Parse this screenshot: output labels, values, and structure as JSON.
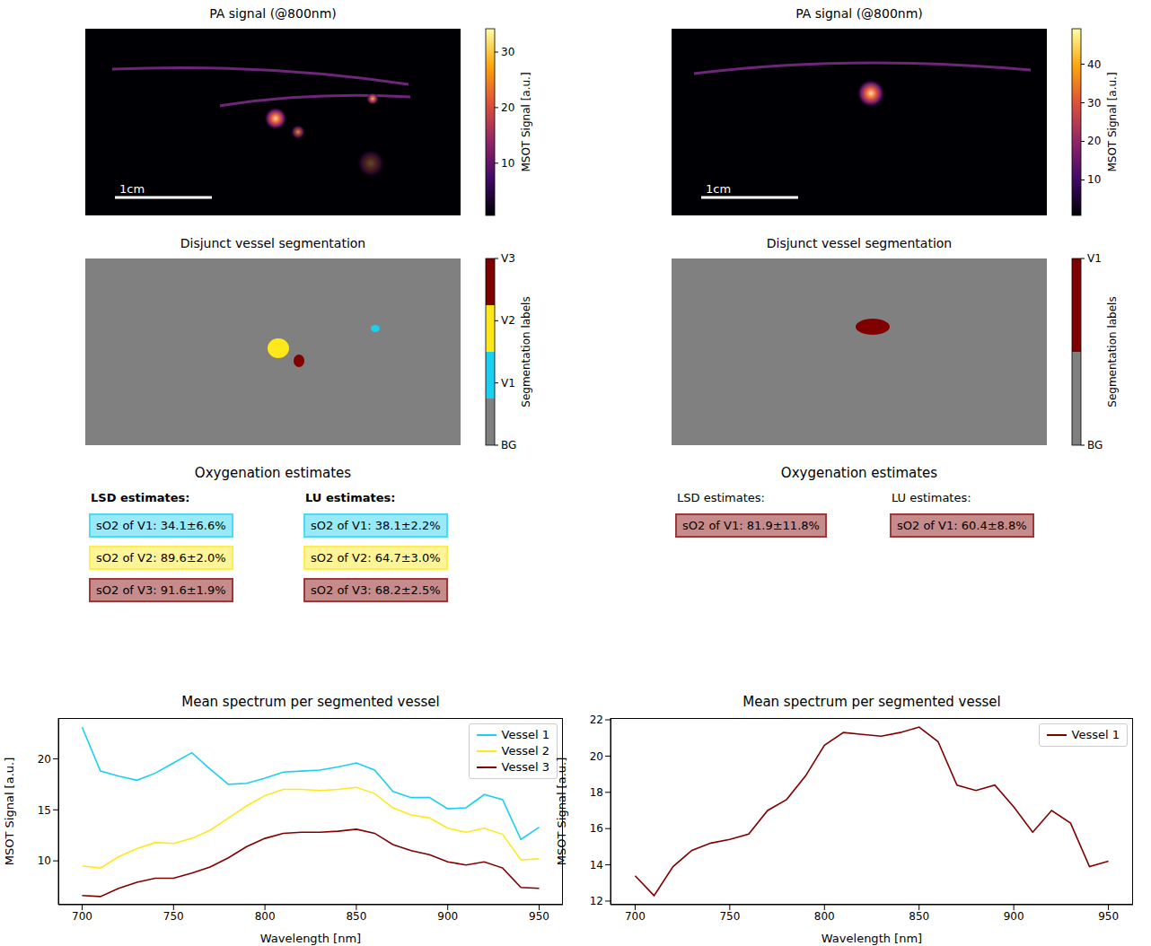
{
  "panels": [
    {
      "pa_image": {
        "title": "PA signal (@800nm)",
        "scale_bar": "1cm",
        "colorbar": {
          "label": "MSOT Signal [a.u.]",
          "range": [
            0.6,
            34.2
          ],
          "ticks": [
            10,
            20,
            30
          ]
        }
      },
      "segmentation": {
        "title": "Disjunct vessel segmentation",
        "colorbar_label": "Segmentation labels",
        "labels": [
          {
            "name": "BG",
            "color": "#808080"
          },
          {
            "name": "V1",
            "color": "#1ad0f0"
          },
          {
            "name": "V2",
            "color": "#ffe81a"
          },
          {
            "name": "V3",
            "color": "#800000"
          }
        ]
      },
      "estimates": {
        "title": "Oxygenation estimates",
        "columns": [
          {
            "heading": "LSD estimates:",
            "entries": [
              "sO2 of V1: 34.1±6.6%",
              "sO2 of V2: 89.6±2.0%",
              "sO2 of V3: 91.6±1.9%"
            ]
          },
          {
            "heading": "LU estimates:",
            "entries": [
              "sO2 of V1: 38.1±2.2%",
              "sO2 of V2: 64.7±3.0%",
              "sO2 of V3: 68.2±2.5%"
            ]
          }
        ]
      }
    },
    {
      "pa_image": {
        "title": "PA signal (@800nm)",
        "scale_bar": "1cm",
        "colorbar": {
          "label": "MSOT Signal [a.u.]",
          "range": [
            0.8,
            49.2
          ],
          "ticks": [
            10,
            20,
            30,
            40
          ]
        }
      },
      "segmentation": {
        "title": "Disjunct vessel segmentation",
        "colorbar_label": "Segmentation labels",
        "labels": [
          {
            "name": "BG",
            "color": "#808080"
          },
          {
            "name": "V1",
            "color": "#800000"
          }
        ]
      },
      "estimates": {
        "title": "Oxygenation estimates",
        "columns": [
          {
            "heading": "LSD estimates:",
            "entries": [
              "sO2 of V1: 81.9±11.8%"
            ]
          },
          {
            "heading": "LU estimates:",
            "entries": [
              "sO2 of V1: 60.4±8.8%"
            ]
          }
        ]
      }
    }
  ],
  "chart_data": [
    {
      "type": "line",
      "title": "Mean spectrum per segmented vessel",
      "x_label": "Wavelength [nm]",
      "y_label": "MSOT Signal [a.u.]",
      "x": [
        700,
        710,
        720,
        730,
        740,
        750,
        760,
        770,
        780,
        790,
        800,
        810,
        820,
        830,
        840,
        850,
        860,
        870,
        880,
        890,
        900,
        910,
        920,
        930,
        940,
        950
      ],
      "xlim": [
        687,
        963
      ],
      "xticks": [
        700,
        750,
        800,
        850,
        900,
        950
      ],
      "ylim": [
        5.7,
        24
      ],
      "yticks": [
        10,
        15,
        20
      ],
      "legend": "upper right",
      "series": [
        {
          "name": "Vessel 1",
          "color": "#1ad0f0",
          "values": [
            23.1,
            18.8,
            18.3,
            17.9,
            18.6,
            19.6,
            20.6,
            19.0,
            17.5,
            17.6,
            18.1,
            18.7,
            18.8,
            18.9,
            19.2,
            19.6,
            18.9,
            16.8,
            16.2,
            16.2,
            15.1,
            15.2,
            16.5,
            16.0,
            12.1,
            13.3
          ]
        },
        {
          "name": "Vessel 2",
          "color": "#ffe81a",
          "values": [
            9.5,
            9.3,
            10.4,
            11.2,
            11.8,
            11.7,
            12.2,
            13.0,
            14.2,
            15.4,
            16.4,
            17.0,
            17.0,
            16.9,
            17.0,
            17.2,
            16.6,
            15.2,
            14.5,
            14.2,
            13.2,
            12.8,
            13.2,
            12.6,
            10.1,
            10.2
          ]
        },
        {
          "name": "Vessel 3",
          "color": "#800000",
          "values": [
            6.6,
            6.5,
            7.3,
            7.9,
            8.3,
            8.3,
            8.8,
            9.4,
            10.3,
            11.4,
            12.2,
            12.7,
            12.8,
            12.8,
            12.9,
            13.1,
            12.7,
            11.6,
            11.0,
            10.6,
            9.9,
            9.6,
            9.9,
            9.3,
            7.4,
            7.3
          ]
        }
      ]
    },
    {
      "type": "line",
      "title": "Mean spectrum per segmented vessel",
      "x_label": "Wavelength [nm]",
      "y_label": "MSOT Signal [a.u.]",
      "x": [
        700,
        710,
        720,
        730,
        740,
        750,
        760,
        770,
        780,
        790,
        800,
        810,
        820,
        830,
        840,
        850,
        860,
        870,
        880,
        890,
        900,
        910,
        920,
        930,
        940,
        950
      ],
      "xlim": [
        687,
        963
      ],
      "xticks": [
        700,
        750,
        800,
        850,
        900,
        950
      ],
      "ylim": [
        11.8,
        22.1
      ],
      "yticks": [
        12,
        14,
        16,
        18,
        20,
        22
      ],
      "legend": "upper right",
      "series": [
        {
          "name": "Vessel 1",
          "color": "#800000",
          "values": [
            13.4,
            12.3,
            13.9,
            14.8,
            15.2,
            15.4,
            15.7,
            17.0,
            17.6,
            18.9,
            20.6,
            21.3,
            21.2,
            21.1,
            21.3,
            21.6,
            20.8,
            18.4,
            18.1,
            18.4,
            17.2,
            15.8,
            17.0,
            16.3,
            13.9,
            14.2
          ]
        }
      ]
    }
  ]
}
